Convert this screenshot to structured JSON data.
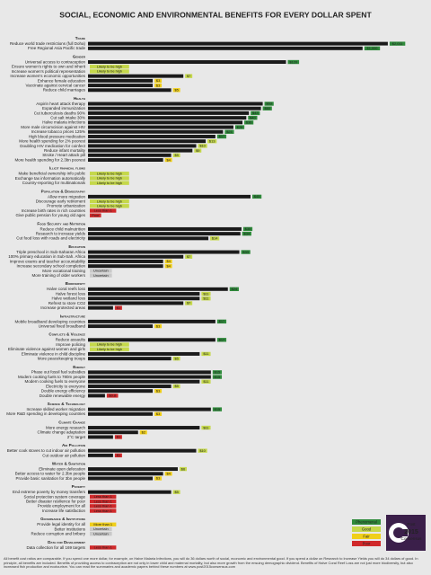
{
  "chart_data": {
    "type": "bar",
    "title": "SOCIAL, ECONOMIC AND ENVIRONMENTAL BENEFITS FOR EVERY DOLLAR SPENT",
    "log_scale": true,
    "xlim": [
      0.5,
      3000
    ],
    "bar_color": "#1a1a1a",
    "sections": [
      {
        "title": "Trade",
        "items": [
          {
            "label": "Reduce world trade restrictions (full Doha)",
            "value": 2011,
            "value_label": "$2,011",
            "rating": "Phenomenal"
          },
          {
            "label": "Free Regional Asia Pacific trade",
            "value": 1000,
            "value_label": "$1,000",
            "rating": "Phenomenal"
          }
        ]
      },
      {
        "title": "Gender",
        "items": [
          {
            "label": "Universal access to contraception",
            "value": 120,
            "value_label": "$120",
            "rating": "Phenomenal"
          },
          {
            "label": "Ensure women's rights to own and inherit",
            "value": null,
            "value_label": "Likely to be high",
            "rating": "Good"
          },
          {
            "label": "Increase women's political representation",
            "value": null,
            "value_label": "Likely to be high",
            "rating": "Good"
          },
          {
            "label": "Increase women's economic opportunities",
            "value": 7,
            "value_label": "$7",
            "rating": "Good"
          },
          {
            "label": "Enhance female education",
            "value": 3,
            "value_label": "$3",
            "rating": "Fair"
          },
          {
            "label": "Vaccinate against cervical cancer",
            "value": 3,
            "value_label": "$3",
            "rating": "Fair"
          },
          {
            "label": "Reduce child marriages",
            "value": 5,
            "value_label": "$5",
            "rating": "Fair"
          }
        ]
      },
      {
        "title": "Health",
        "items": [
          {
            "label": "Aspirin heart attack therapy",
            "value": 63,
            "value_label": "$63",
            "rating": "Phenomenal"
          },
          {
            "label": "Expanded immunization",
            "value": 60,
            "value_label": "$60",
            "rating": "Phenomenal"
          },
          {
            "label": "Cut tuberculosis deaths 90%",
            "value": 43,
            "value_label": "$43",
            "rating": "Phenomenal"
          },
          {
            "label": "Cut salt intake 30%",
            "value": 40,
            "value_label": "$40",
            "rating": "Phenomenal"
          },
          {
            "label": "Halve malaria infections",
            "value": 36,
            "value_label": "$36",
            "rating": "Phenomenal"
          },
          {
            "label": "More male circumcision against HIV",
            "value": 28,
            "value_label": "$28",
            "rating": "Phenomenal"
          },
          {
            "label": "Increase tobacco prices 125%",
            "value": 21,
            "value_label": "$21",
            "rating": "Phenomenal"
          },
          {
            "label": "High blood pressure medication",
            "value": 17,
            "value_label": "$17",
            "rating": "Phenomenal"
          },
          {
            "label": "More health spending for 2% poorest",
            "value": 13,
            "value_label": "$13",
            "rating": "Good"
          },
          {
            "label": "Doubling HIV medication for coinfect",
            "value": 10,
            "value_label": "$10",
            "rating": "Good"
          },
          {
            "label": "Reduce infant mortality",
            "value": 9,
            "value_label": "$9",
            "rating": "Good"
          },
          {
            "label": "Stroke / Heart attack pill",
            "value": 5,
            "value_label": "$5",
            "rating": "Good"
          },
          {
            "label": "More health spending for 2.3bn poorest",
            "value": 4,
            "value_label": "$4",
            "rating": "Fair"
          }
        ]
      },
      {
        "title": "Illicit financial flows",
        "items": [
          {
            "label": "Make beneficial ownership info public",
            "value": null,
            "value_label": "Likely to be high",
            "rating": "Good"
          },
          {
            "label": "Exchange tax information automatically",
            "value": null,
            "value_label": "Likely to be high",
            "rating": "Good"
          },
          {
            "label": "Country-reporting for multinationals",
            "value": null,
            "value_label": "Likely to be high",
            "rating": "Good"
          }
        ]
      },
      {
        "title": "Population & Demography",
        "items": [
          {
            "label": "Allow more migration",
            "value": 45,
            "value_label": "$45",
            "rating": "Phenomenal"
          },
          {
            "label": "Discourage early retirement",
            "value": null,
            "value_label": "Likely to be high",
            "rating": "Good"
          },
          {
            "label": "Promote urbanization",
            "value": null,
            "value_label": "Likely to be high",
            "rating": "Good"
          },
          {
            "label": "Increase birth rates in rich countries",
            "value": null,
            "value_label": "Less than 1",
            "rating": "Poor"
          },
          {
            "label": "Give public pension for young old ages",
            "value": null,
            "value_label": "Poor",
            "rating": "Poor"
          }
        ]
      },
      {
        "title": "Food Security and Nutrition",
        "items": [
          {
            "label": "Reduce child malnutrition",
            "value": 35,
            "value_label": "$35",
            "rating": "Phenomenal"
          },
          {
            "label": "Research to increase yields",
            "value": 34,
            "value_label": "$34",
            "rating": "Phenomenal"
          },
          {
            "label": "Cut food loss with roads and electricity",
            "value": 14,
            "value_label": "$14",
            "rating": "Good"
          }
        ]
      },
      {
        "title": "Education",
        "items": [
          {
            "label": "Triple preschool in Sub-Saharan Africa",
            "value": 33,
            "value_label": "$33",
            "rating": "Phenomenal"
          },
          {
            "label": "100% primary education in Sub-Sah. Africa",
            "value": 7,
            "value_label": "$7",
            "rating": "Good"
          },
          {
            "label": "Improve exams and teacher accountability",
            "value": 4,
            "value_label": "$4",
            "rating": "Fair"
          },
          {
            "label": "Increase secondary school completion",
            "value": 4,
            "value_label": "$4",
            "rating": "Fair"
          },
          {
            "label": "More vocational training",
            "value": null,
            "value_label": "Uncertain",
            "rating": null
          },
          {
            "label": "More training of older workers",
            "value": null,
            "value_label": "Uncertain",
            "rating": null
          }
        ]
      },
      {
        "title": "Biodiversity",
        "items": [
          {
            "label": "Halve coral reefs loss",
            "value": 24,
            "value_label": "$24",
            "rating": "Phenomenal"
          },
          {
            "label": "Halve forest loss",
            "value": 11,
            "value_label": "$11",
            "rating": "Good"
          },
          {
            "label": "Halve wetland loss",
            "value": 11,
            "value_label": "$11",
            "rating": "Good"
          },
          {
            "label": "Refrest to store CO2",
            "value": 7,
            "value_label": "$7",
            "rating": "Good"
          },
          {
            "label": "Increase protected areas",
            "value": 1,
            "value_label": "$1",
            "rating": "Poor"
          }
        ]
      },
      {
        "title": "Infrastructure",
        "items": [
          {
            "label": "Mobile broadband developing countries",
            "value": 17,
            "value_label": "$17",
            "rating": "Phenomenal"
          },
          {
            "label": "Universal fixed broadband",
            "value": 3,
            "value_label": "$3",
            "rating": "Fair"
          }
        ]
      },
      {
        "title": "Conflicts & Violence",
        "items": [
          {
            "label": "Reduce assaults",
            "value": 17,
            "value_label": "$17",
            "rating": "Phenomenal"
          },
          {
            "label": "Improve policing",
            "value": null,
            "value_label": "Likely to be high",
            "rating": "Good"
          },
          {
            "label": "Eliminate violence against women and girls",
            "value": null,
            "value_label": "Likely to be high",
            "rating": "Good"
          },
          {
            "label": "Eliminate violence in child discipline",
            "value": 11,
            "value_label": "$11",
            "rating": "Good"
          },
          {
            "label": "More peacekeeping troops",
            "value": 5,
            "value_label": "$5",
            "rating": "Good"
          }
        ]
      },
      {
        "title": "Energy",
        "items": [
          {
            "label": "Phase out fossil fuel subsidies",
            "value": 15,
            "value_label": "$15",
            "rating": "Phenomenal"
          },
          {
            "label": "Modern cooking fuels to 780m people",
            "value": 15,
            "value_label": "$15",
            "rating": "Phenomenal"
          },
          {
            "label": "Modern cooking fuels to everyone",
            "value": 11,
            "value_label": "$11",
            "rating": "Good"
          },
          {
            "label": "Electricity to everyone",
            "value": 5,
            "value_label": "$5",
            "rating": "Good"
          },
          {
            "label": "Double energy efficiency",
            "value": 3,
            "value_label": "$3",
            "rating": "Fair"
          },
          {
            "label": "Double renewable energy",
            "value": 0.8,
            "value_label": "$0.8",
            "rating": "Poor"
          }
        ]
      },
      {
        "title": "Science & Technology",
        "items": [
          {
            "label": "Increase skilled worker migration",
            "value": 15,
            "value_label": "$15",
            "rating": "Phenomenal"
          },
          {
            "label": "More R&D spending in developing countries",
            "value": 3,
            "value_label": "$3",
            "rating": "Fair"
          }
        ]
      },
      {
        "title": "Climate Change",
        "items": [
          {
            "label": "More energy research",
            "value": 11,
            "value_label": "$11",
            "rating": "Good"
          },
          {
            "label": "Climate change adaptation",
            "value": 2,
            "value_label": "$2",
            "rating": "Fair"
          },
          {
            "label": "2°C target",
            "value": 1,
            "value_label": "$1",
            "rating": "Poor"
          }
        ]
      },
      {
        "title": "Air Pollution",
        "items": [
          {
            "label": "Better cook stoves to cut indoor air pollution",
            "value": 10,
            "value_label": "$10",
            "rating": "Good"
          },
          {
            "label": "Cut outdoor air pollution",
            "value": 1,
            "value_label": "$1",
            "rating": "Poor"
          }
        ]
      },
      {
        "title": "Water & Sanitation",
        "items": [
          {
            "label": "Eliminate open defecation",
            "value": 6,
            "value_label": "$6",
            "rating": "Good"
          },
          {
            "label": "Better access to water for 2.3bn people",
            "value": 4,
            "value_label": "$4",
            "rating": "Fair"
          },
          {
            "label": "Provide basic sanitation for 3bn people",
            "value": 3,
            "value_label": "$3",
            "rating": "Fair"
          }
        ]
      },
      {
        "title": "Poverty",
        "items": [
          {
            "label": "End extreme poverty by money transfers",
            "value": 5,
            "value_label": "$5",
            "rating": "Good"
          },
          {
            "label": "Social protection system coverage",
            "value": null,
            "value_label": "Less than 1",
            "rating": "Poor"
          },
          {
            "label": "Better disaster resilience for poor",
            "value": null,
            "value_label": "Less than 1",
            "rating": "Poor"
          },
          {
            "label": "Provide employment for all",
            "value": null,
            "value_label": "Less than 1",
            "rating": "Poor"
          },
          {
            "label": "Increase life satisfaction",
            "value": null,
            "value_label": "Less than 1",
            "rating": "Poor"
          }
        ]
      },
      {
        "title": "Governance & Institutions",
        "items": [
          {
            "label": "Provide legal identity for all",
            "value": null,
            "value_label": "More than 1",
            "rating": "Fair"
          },
          {
            "label": "Better institutions",
            "value": null,
            "value_label": "Uncertain",
            "rating": null
          },
          {
            "label": "Reduce corruption and bribery",
            "value": null,
            "value_label": "Uncertain",
            "rating": null
          }
        ]
      },
      {
        "title": "Data for Development",
        "items": [
          {
            "label": "Data collection for all 169 targets",
            "value": null,
            "value_label": "Less than 1",
            "rating": "Poor"
          }
        ]
      }
    ],
    "legend": {
      "position": "bottom-right",
      "entries": [
        {
          "name": "Phenomenal",
          "color": "#2f8a3b"
        },
        {
          "name": "Good",
          "color": "#c5d84a"
        },
        {
          "name": "Fair",
          "color": "#f0cf1a"
        },
        {
          "name": "Poor",
          "color": "#d0282a"
        }
      ]
    },
    "logo": [
      "Post",
      "2015",
      "Consensus"
    ],
    "footnote": "All benefit cost ratios are comparable. If you spend one more dollar, for example, on Halve Malaria Infections, you will do 36 dollars worth of social, economic and environmental good. If you spend a dollar on Research to Increase Yields you will do 34 dollars of good. In principle, all benefits are included. Benefits of providing access to contraception are not only in lower child and maternal mortality, but also more growth from the ensuing demographic dividend. Benefits of Halve Coral Reef Loss are not just more biodiversity, but also increased fish production and ecotourism. You can read the summaries and academic papers behind these numbers at www.post2015consensus.com"
  }
}
